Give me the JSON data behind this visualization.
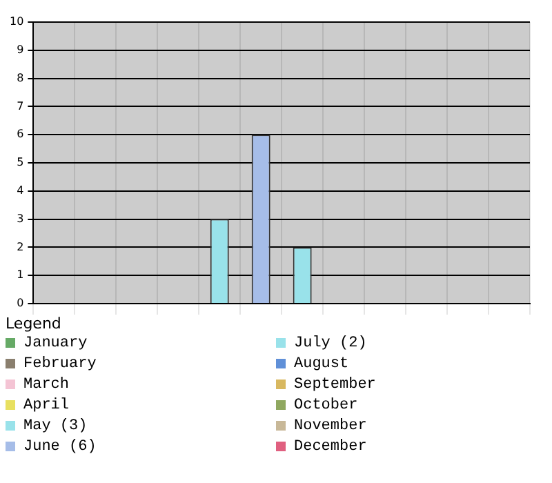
{
  "chart_data": {
    "type": "bar",
    "legend_title": "Legend",
    "categories": [
      null,
      null,
      null,
      null,
      null,
      null,
      null,
      null,
      null,
      null,
      null,
      null
    ],
    "series": [
      {
        "name": "January",
        "color": "#66aa66",
        "values": [
          0,
          null,
          null,
          null,
          null,
          null,
          null,
          null,
          null,
          null,
          null,
          null
        ]
      },
      {
        "name": "February",
        "color": "#8a7f6e",
        "values": [
          null,
          0,
          null,
          null,
          null,
          null,
          null,
          null,
          null,
          null,
          null,
          null
        ]
      },
      {
        "name": "March",
        "color": "#f4c4d4",
        "values": [
          null,
          null,
          0,
          null,
          null,
          null,
          null,
          null,
          null,
          null,
          null,
          null
        ]
      },
      {
        "name": "April",
        "color": "#e8e060",
        "values": [
          null,
          null,
          null,
          0,
          null,
          null,
          null,
          null,
          null,
          null,
          null,
          null
        ]
      },
      {
        "name": "May (3)",
        "color": "#99e2ea",
        "values": [
          null,
          null,
          null,
          null,
          3,
          null,
          null,
          null,
          null,
          null,
          null,
          null
        ]
      },
      {
        "name": "June (6)",
        "color": "#a6bde8",
        "values": [
          null,
          null,
          null,
          null,
          null,
          6,
          null,
          null,
          null,
          null,
          null,
          null
        ]
      },
      {
        "name": "July (2)",
        "color": "#99e2ea",
        "values": [
          null,
          null,
          null,
          null,
          null,
          null,
          2,
          null,
          null,
          null,
          null,
          null
        ]
      },
      {
        "name": "August",
        "color": "#6090d8",
        "values": [
          null,
          null,
          null,
          null,
          null,
          null,
          null,
          0,
          null,
          null,
          null,
          null
        ]
      },
      {
        "name": "September",
        "color": "#d8b860",
        "values": [
          null,
          null,
          null,
          null,
          null,
          null,
          null,
          null,
          0,
          null,
          null,
          null
        ]
      },
      {
        "name": "October",
        "color": "#90a860",
        "values": [
          null,
          null,
          null,
          null,
          null,
          null,
          null,
          null,
          null,
          0,
          null,
          null
        ]
      },
      {
        "name": "November",
        "color": "#c8b898",
        "values": [
          null,
          null,
          null,
          null,
          null,
          null,
          null,
          null,
          null,
          null,
          0,
          null
        ]
      },
      {
        "name": "December",
        "color": "#e06080",
        "values": [
          null,
          null,
          null,
          null,
          null,
          null,
          null,
          null,
          null,
          null,
          null,
          0
        ]
      }
    ],
    "ylim": [
      0,
      10
    ],
    "yticks": [
      0,
      1,
      2,
      3,
      4,
      5,
      6,
      7,
      8,
      9,
      10
    ],
    "grid": true,
    "legend": "bottom",
    "tick_labels": "y"
  }
}
